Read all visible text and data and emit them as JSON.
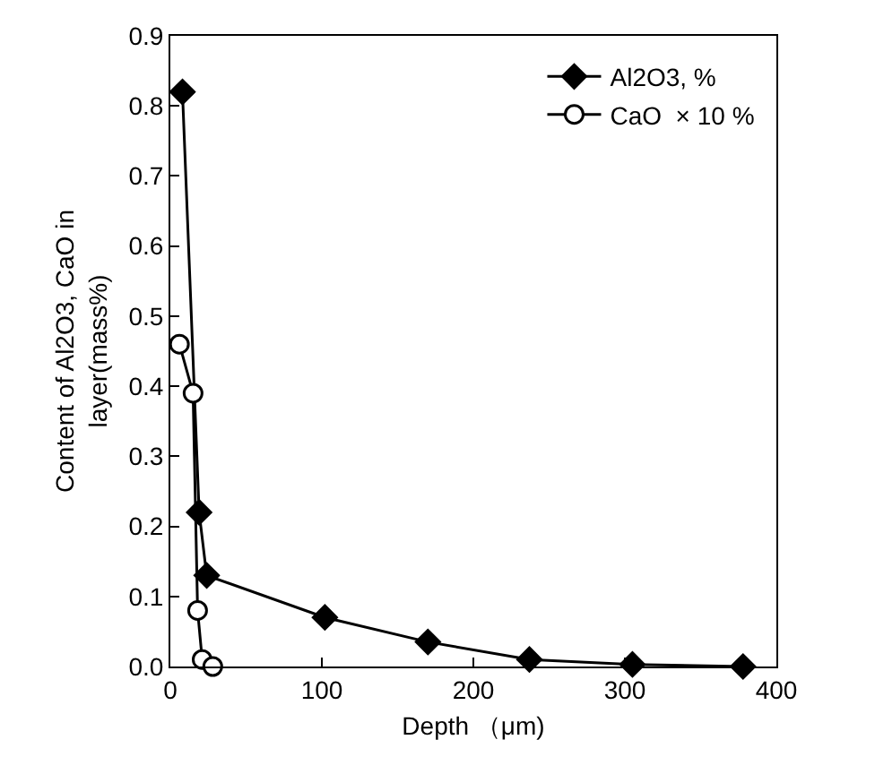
{
  "chart_data": {
    "type": "line",
    "xlabel": "Depth （μm)",
    "ylabel": "Content of Al2O3, CaO in layer(mass%)",
    "legend": "top right",
    "grid": false,
    "xlim": [
      0,
      400
    ],
    "xticks": [
      0,
      100,
      200,
      300,
      400
    ],
    "ylim": [
      0,
      0.9
    ],
    "yticks": [
      {
        "value": 0,
        "label": "0.0"
      },
      {
        "value": 0.1,
        "label": "0.1"
      },
      {
        "value": 0.2,
        "label": "0.2"
      },
      {
        "value": 0.3,
        "label": "0.3"
      },
      {
        "value": 0.4,
        "label": "0.4"
      },
      {
        "value": 0.5,
        "label": "0.5"
      },
      {
        "value": 0.6,
        "label": "0.6"
      },
      {
        "value": 0.7,
        "label": "0.7"
      },
      {
        "value": 0.8,
        "label": "0.8"
      },
      {
        "value": 0.9,
        "label": "0.9"
      }
    ],
    "series": [
      {
        "name": "Al2O3, %",
        "color": "#000000",
        "marker": "diamond",
        "x": [
          8,
          14,
          19,
          24,
          102,
          170,
          237,
          305,
          378
        ],
        "values": [
          0.82,
          null,
          0.22,
          0.13,
          0.07,
          0.035,
          0.01,
          0.003,
          0.0
        ]
      },
      {
        "name": "CaO  × 10 %",
        "color": "#000000",
        "marker": "circle",
        "x": [
          6,
          15,
          18,
          21,
          28
        ],
        "values": [
          0.46,
          0.39,
          0.08,
          0.01,
          0.0
        ]
      }
    ]
  }
}
